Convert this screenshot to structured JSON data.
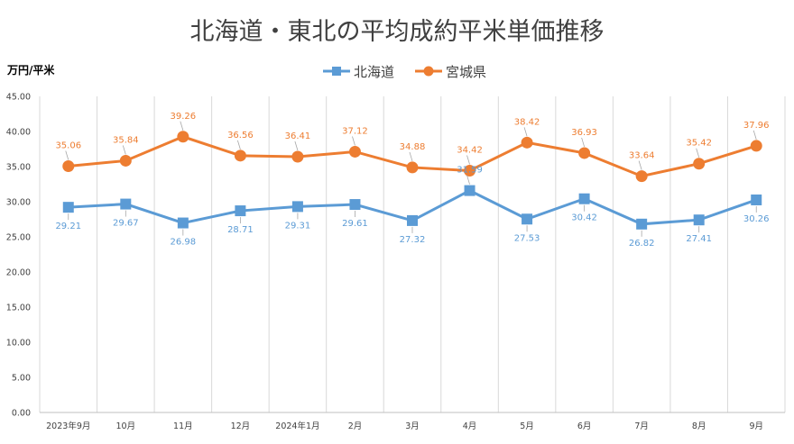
{
  "chart_data": {
    "type": "line",
    "title": "北海道・東北の平均成約平米単価推移",
    "ylabel": "万円/平米",
    "xlabel": "",
    "categories": [
      "2023年9月",
      "10月",
      "11月",
      "12月",
      "2024年1月",
      "2月",
      "3月",
      "4月",
      "5月",
      "6月",
      "7月",
      "8月",
      "9月"
    ],
    "ylim": [
      0,
      45
    ],
    "yticks": [
      "0.00",
      "5.00",
      "10.00",
      "15.00",
      "20.00",
      "25.00",
      "30.00",
      "35.00",
      "40.00",
      "45.00"
    ],
    "grid": "vertical",
    "legend_position": "top",
    "series": [
      {
        "name": "北海道",
        "color": "#5B9BD5",
        "marker": "square",
        "values": [
          29.21,
          29.67,
          26.98,
          28.71,
          29.31,
          29.61,
          27.32,
          31.59,
          27.53,
          30.42,
          26.82,
          27.41,
          30.26
        ],
        "labels": [
          "29.21",
          "29.67",
          "26.98",
          "28.71",
          "29.31",
          "29.61",
          "27.32",
          "31.59",
          "27.53",
          "30.42",
          "26.82",
          "27.41",
          "30.26"
        ]
      },
      {
        "name": "宮城県",
        "color": "#ED7D31",
        "marker": "circle",
        "values": [
          35.06,
          35.84,
          39.26,
          36.56,
          36.41,
          37.12,
          34.88,
          34.42,
          38.42,
          36.93,
          33.64,
          35.42,
          37.96
        ],
        "labels": [
          "35.06",
          "35.84",
          "39.26",
          "36.56",
          "36.41",
          "37.12",
          "34.88",
          "34.42",
          "38.42",
          "36.93",
          "33.64",
          "35.42",
          "37.96"
        ]
      }
    ]
  }
}
